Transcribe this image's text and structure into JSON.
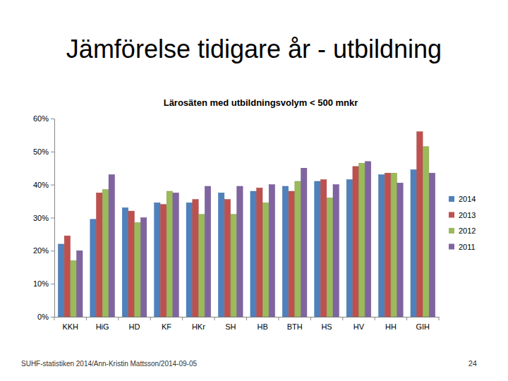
{
  "slide": {
    "title": "Jämförelse tidigare år - utbildning",
    "footer": "SUHF-statistiken 2014/Ann-Kristin Mattsson/2014-09-05",
    "page_number": 24
  },
  "chart_data": {
    "type": "bar",
    "title": "Lärosäten med utbildningsvolym < 500 mnkr",
    "categories": [
      "KKH",
      "HiG",
      "HD",
      "KF",
      "HKr",
      "SH",
      "HB",
      "BTH",
      "HS",
      "HV",
      "HH",
      "GIH"
    ],
    "series": [
      {
        "name": "2014",
        "color": "#4f81bd",
        "values": [
          22,
          29.5,
          33,
          34.5,
          34.5,
          37.5,
          38,
          39.5,
          41,
          41.5,
          43,
          44.5
        ]
      },
      {
        "name": "2013",
        "color": "#c0504d",
        "values": [
          24.5,
          37.5,
          32,
          34,
          35.5,
          35.5,
          39,
          38,
          41.5,
          45.5,
          43.5,
          56
        ]
      },
      {
        "name": "2012",
        "color": "#9bbb59",
        "values": [
          17,
          38.5,
          28.5,
          38,
          31,
          31,
          34.5,
          41,
          36,
          46.5,
          43.5,
          51.5
        ]
      },
      {
        "name": "2011",
        "color": "#8064a2",
        "values": [
          20,
          43,
          30,
          37.5,
          39.5,
          39.5,
          40,
          45,
          40,
          47,
          40.5,
          43.5
        ]
      }
    ],
    "ylim": [
      0,
      60
    ],
    "yticks": [
      {
        "value": 0,
        "label": "0%"
      },
      {
        "value": 10,
        "label": "10%"
      },
      {
        "value": 20,
        "label": "20%"
      },
      {
        "value": 30,
        "label": "30%"
      },
      {
        "value": 40,
        "label": "40%"
      },
      {
        "value": 50,
        "label": "50%"
      },
      {
        "value": 60,
        "label": "60%"
      }
    ],
    "grid": false,
    "legend": "right"
  }
}
